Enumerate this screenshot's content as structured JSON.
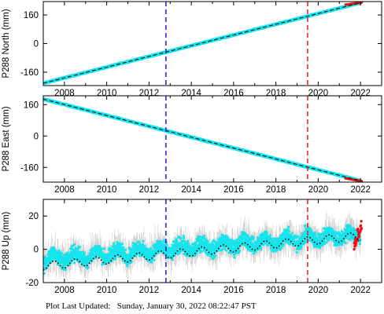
{
  "footer": {
    "prefix": "Plot Last Updated:",
    "timestamp": "Sunday, January 30, 2022 08:22:47 PST"
  },
  "chart_data": [
    {
      "type": "scatter",
      "ylabel": "P288 North (mm)",
      "xlim": [
        2007.0,
        2023.0
      ],
      "ylim": [
        -235,
        235
      ],
      "xticks": [
        2008,
        2010,
        2012,
        2014,
        2016,
        2018,
        2020,
        2022
      ],
      "yticks": [
        -160,
        0,
        160
      ],
      "markers": [
        {
          "x": 2012.8,
          "color": "#1f1fd0",
          "style": "dashed"
        },
        {
          "x": 2019.5,
          "color": "#e02020",
          "style": "dashed"
        }
      ],
      "series": [
        {
          "color": "#16e4ec",
          "role": "observations",
          "x_start": 2007.0,
          "x_end": 2022.0,
          "y_start": -222,
          "y_end": 228
        },
        {
          "color": "#e8101a",
          "role": "rapid",
          "x_start": 2021.3,
          "x_end": 2022.05,
          "y_start": 218,
          "y_end": 230
        },
        {
          "color": "#000000",
          "role": "model",
          "style": "dashed",
          "x_start": 2007.0,
          "x_end": 2022.0,
          "y_start": -222,
          "y_end": 228
        }
      ]
    },
    {
      "type": "scatter",
      "ylabel": "P288 East (mm)",
      "xlim": [
        2007.0,
        2023.0
      ],
      "ylim": [
        -235,
        205
      ],
      "xticks": [
        2008,
        2010,
        2012,
        2014,
        2016,
        2018,
        2020,
        2022
      ],
      "yticks": [
        -160,
        0,
        160
      ],
      "markers": [
        {
          "x": 2012.8,
          "color": "#1f1fd0",
          "style": "dashed"
        },
        {
          "x": 2019.5,
          "color": "#e02020",
          "style": "dashed"
        }
      ],
      "series": [
        {
          "color": "#16e4ec",
          "role": "observations",
          "x_start": 2007.0,
          "x_end": 2022.0,
          "y_start": 188,
          "y_end": -228
        },
        {
          "color": "#e8101a",
          "role": "rapid",
          "x_start": 2021.3,
          "x_end": 2022.05,
          "y_start": -216,
          "y_end": -230
        },
        {
          "color": "#000000",
          "role": "model",
          "style": "dashed",
          "x_start": 2007.0,
          "x_end": 2022.0,
          "y_start": 188,
          "y_end": -228
        }
      ]
    },
    {
      "type": "scatter",
      "ylabel": "P288 Up (mm)",
      "xlim": [
        2007.0,
        2023.0
      ],
      "ylim": [
        -20,
        30
      ],
      "xticks": [
        2008,
        2010,
        2012,
        2014,
        2016,
        2018,
        2020,
        2022
      ],
      "yticks": [
        -20,
        0,
        20
      ],
      "markers": [
        {
          "x": 2012.8,
          "color": "#1f1fd0",
          "style": "dashed"
        },
        {
          "x": 2019.5,
          "color": "#e02020",
          "style": "dashed"
        }
      ],
      "series": [
        {
          "color": "#b8b8b8",
          "role": "error-bars",
          "x_start": 2007.0,
          "x_end": 2022.0,
          "half_width": 7
        },
        {
          "color": "#16e4ec",
          "role": "observations",
          "x_start": 2007.0,
          "x_end": 2022.0,
          "y_start": -6,
          "y_end": 9,
          "seasonal_amplitude": 2.5,
          "scatter": 4
        },
        {
          "color": "#e8101a",
          "role": "rapid",
          "x_start": 2021.7,
          "x_end": 2022.05,
          "y_start": 3,
          "y_end": 14
        },
        {
          "color": "#000000",
          "role": "model",
          "style": "dotted",
          "x_start": 2007.0,
          "x_end": 2022.0,
          "y_start": -10,
          "y_end": 8,
          "seasonal_amplitude": 2.5
        }
      ]
    }
  ]
}
